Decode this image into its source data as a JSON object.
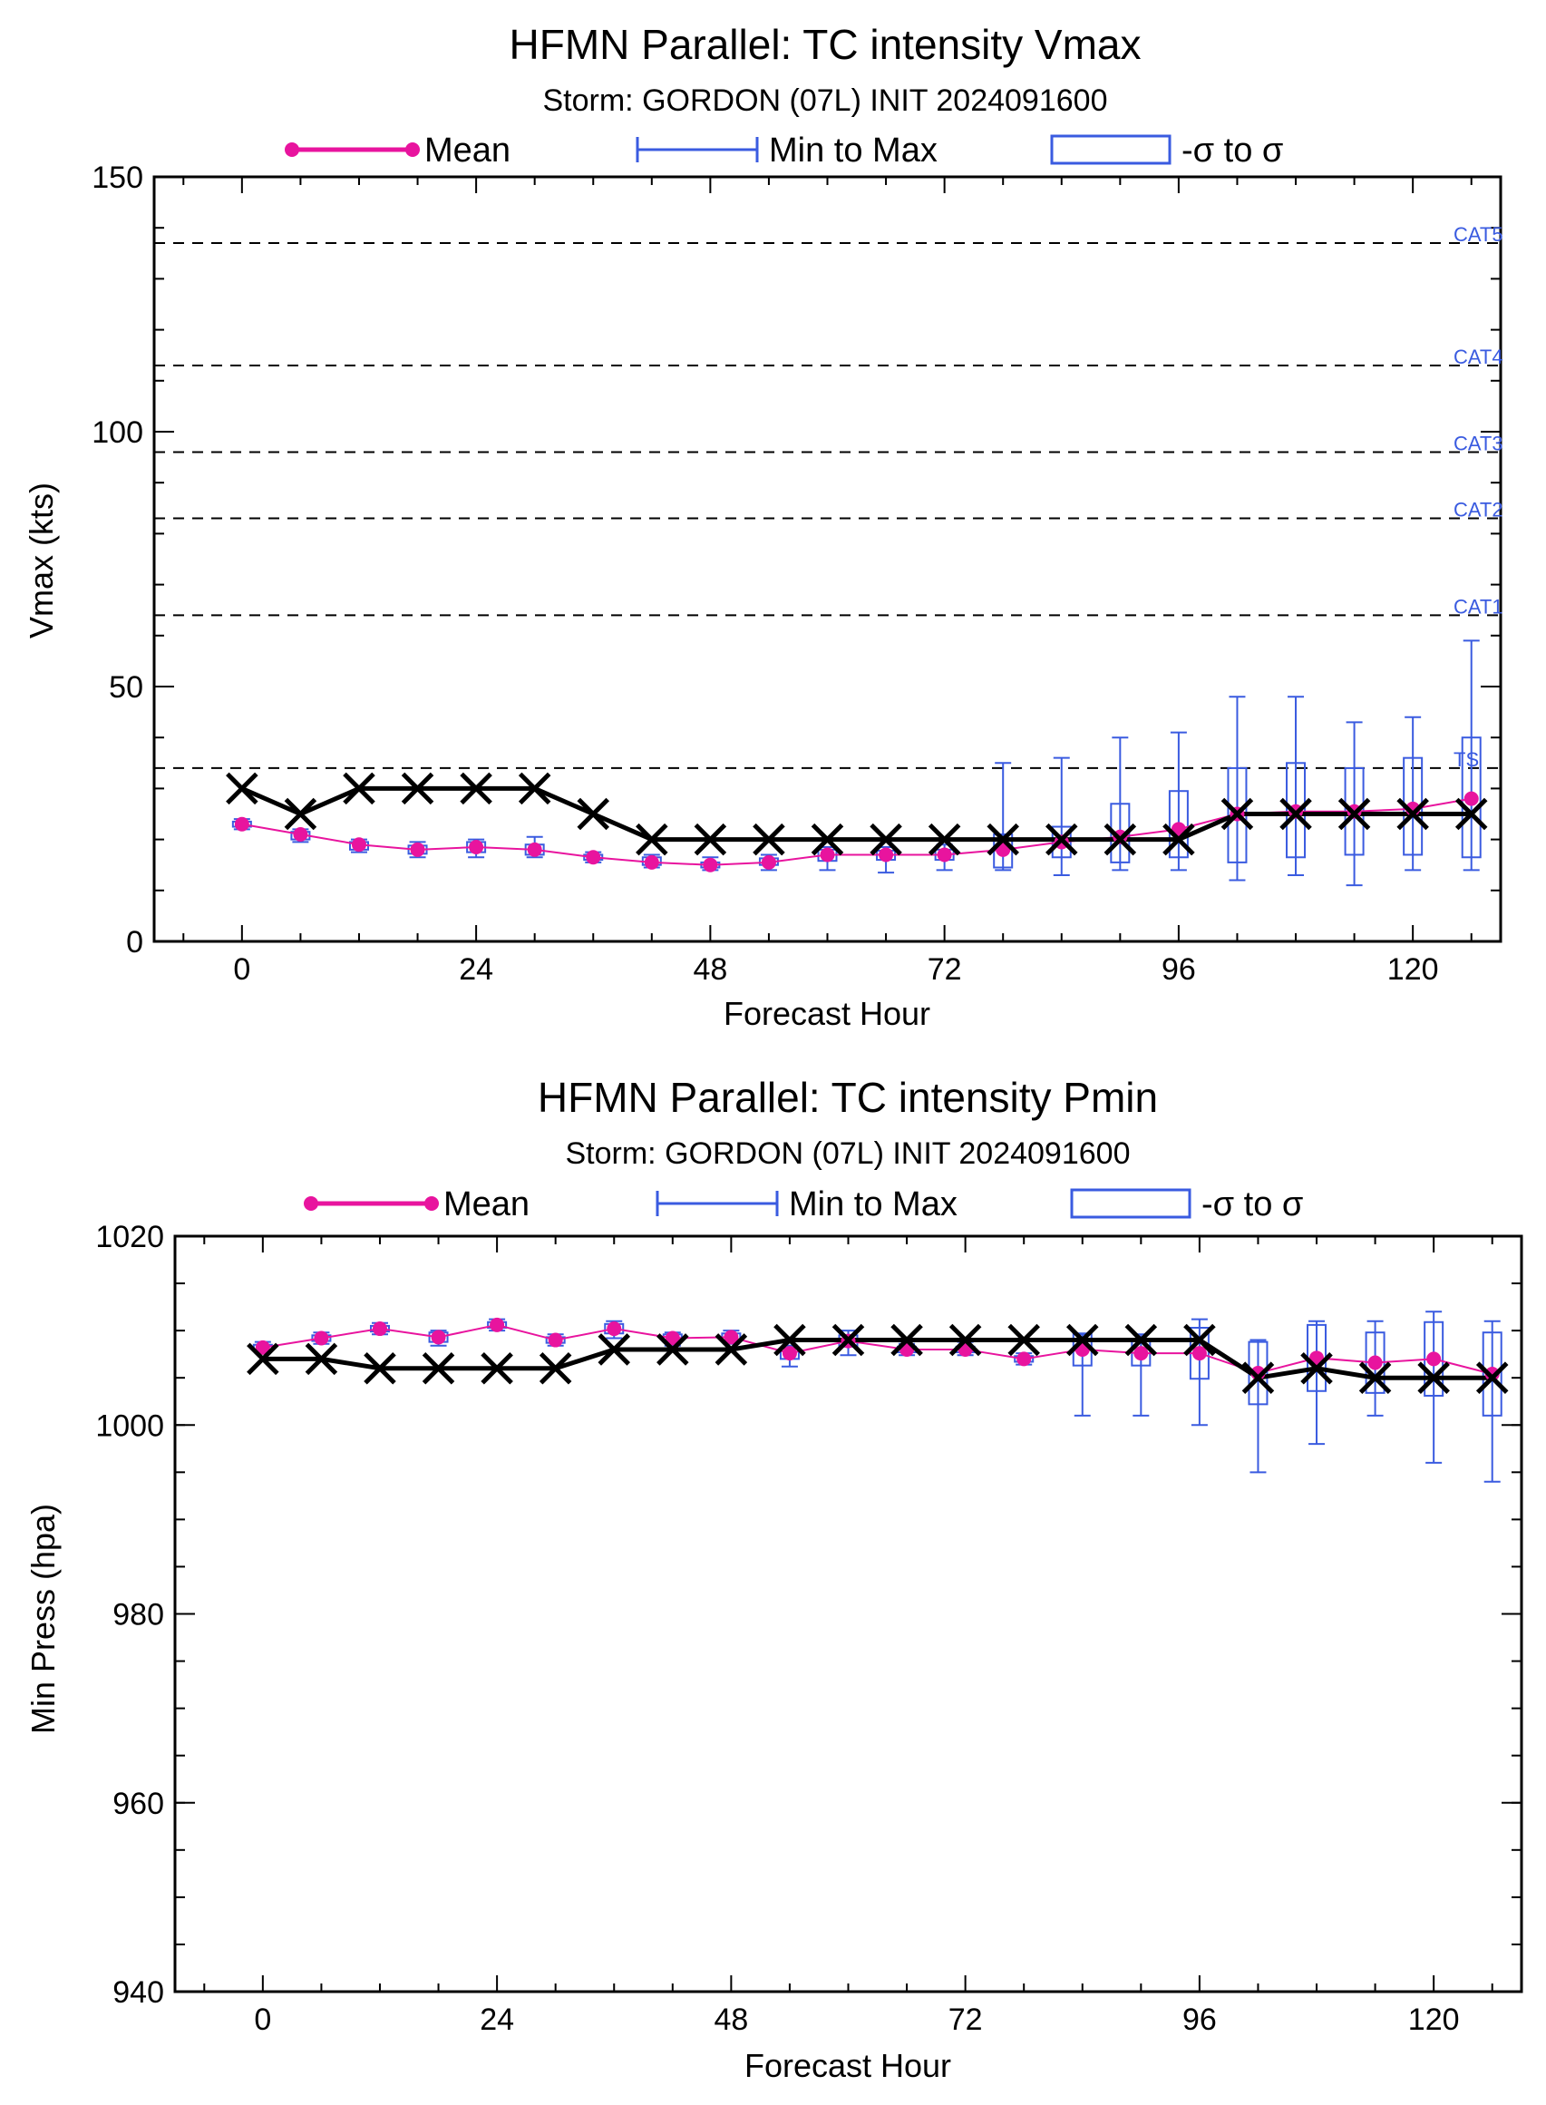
{
  "chart_data": [
    {
      "type": "line",
      "title": "HFMN Parallel: TC intensity Vmax",
      "subtitle": "Storm: GORDON (07L) INIT 2024091600",
      "xlabel": "Forecast Hour",
      "ylabel": "Vmax (kts)",
      "xlim": [
        -9,
        129
      ],
      "ylim": [
        0,
        150
      ],
      "xticks": [
        "0",
        "24",
        "48",
        "72",
        "96",
        "120"
      ],
      "yticks": [
        "0",
        "50",
        "100",
        "150"
      ],
      "legend": [
        "Mean",
        "Min to Max",
        "-σ to σ"
      ],
      "legend_placement": "top",
      "colors": {
        "mean": "#e8149e",
        "spread": "#3a5be0",
        "observed": "#000000"
      },
      "reference_lines": [
        {
          "label": "CAT5",
          "value": 137
        },
        {
          "label": "CAT4",
          "value": 113
        },
        {
          "label": "CAT3",
          "value": 96
        },
        {
          "label": "CAT2",
          "value": 83
        },
        {
          "label": "CAT1",
          "value": 64
        },
        {
          "label": "TS",
          "value": 34
        }
      ],
      "x": [
        0,
        6,
        12,
        18,
        24,
        30,
        36,
        42,
        48,
        54,
        60,
        66,
        72,
        78,
        84,
        90,
        96,
        102,
        108,
        114,
        120,
        126
      ],
      "series": [
        {
          "name": "Mean",
          "values": [
            23,
            21,
            19,
            18,
            18.5,
            18,
            16.5,
            15.5,
            15,
            15.5,
            17,
            17,
            17,
            18,
            19.5,
            20.5,
            22,
            25,
            25.5,
            25.5,
            26,
            28
          ]
        },
        {
          "name": "Min to Max",
          "min": [
            22,
            19.5,
            17.5,
            16.5,
            16.5,
            16.5,
            15.5,
            14.5,
            14,
            14,
            14,
            13.5,
            14,
            14,
            13,
            14,
            14,
            12,
            13,
            11,
            14,
            14
          ],
          "max": [
            24,
            22,
            20,
            19.5,
            20,
            20.5,
            17.5,
            17,
            16.5,
            17,
            18.5,
            18.5,
            19,
            35,
            36,
            40,
            41,
            48,
            48,
            43,
            44,
            59
          ]
        },
        {
          "name": "-σ to σ",
          "lower": [
            22.5,
            20,
            18,
            17.2,
            17.5,
            17,
            16,
            15,
            14.5,
            15,
            15.8,
            16,
            16,
            14.5,
            16.5,
            15.5,
            16.5,
            15.5,
            16.5,
            17,
            17,
            16.5
          ],
          "upper": [
            23.5,
            21.5,
            19.5,
            18.8,
            19.5,
            19,
            17,
            16.5,
            15.5,
            16.3,
            18,
            17.8,
            18,
            21,
            22.5,
            27,
            29.5,
            34,
            35,
            34,
            36,
            40
          ]
        },
        {
          "name": "Observed",
          "values": [
            30,
            25,
            30,
            30,
            30,
            30,
            25,
            20,
            20,
            20,
            20,
            20,
            20,
            20,
            20,
            20,
            20,
            25,
            25,
            25,
            25,
            25
          ]
        }
      ]
    },
    {
      "type": "line",
      "title": "HFMN Parallel: TC intensity Pmin",
      "subtitle": "Storm: GORDON (07L) INIT 2024091600",
      "xlabel": "Forecast Hour",
      "ylabel": "Min Press (hpa)",
      "xlim": [
        -9,
        129
      ],
      "ylim": [
        940,
        1020
      ],
      "xticks": [
        "0",
        "24",
        "48",
        "72",
        "96",
        "120"
      ],
      "yticks": [
        "940",
        "960",
        "980",
        "1000",
        "1020"
      ],
      "legend": [
        "Mean",
        "Min to Max",
        "-σ to σ"
      ],
      "legend_placement": "top",
      "colors": {
        "mean": "#e8149e",
        "spread": "#3a5be0",
        "observed": "#000000"
      },
      "x": [
        0,
        6,
        12,
        18,
        24,
        30,
        36,
        42,
        48,
        54,
        60,
        66,
        72,
        78,
        84,
        90,
        96,
        102,
        108,
        114,
        120,
        126
      ],
      "series": [
        {
          "name": "Mean",
          "values": [
            1008.2,
            1009.2,
            1010.2,
            1009.3,
            1010.6,
            1009,
            1010.2,
            1009.2,
            1009.3,
            1007.6,
            1008.9,
            1008,
            1008,
            1007,
            1008,
            1007.6,
            1007.6,
            1005.5,
            1007.1,
            1006.6,
            1007,
            1005.4
          ]
        },
        {
          "name": "Min to Max",
          "min": [
            1007.6,
            1008.6,
            1009.6,
            1008.4,
            1010,
            1008.4,
            1009.2,
            1008.4,
            1008.6,
            1006.2,
            1007.4,
            1007.4,
            1007.4,
            1006.4,
            1001,
            1001,
            1000,
            995,
            998,
            1001,
            996,
            994
          ],
          "max": [
            1008.8,
            1009.8,
            1010.8,
            1010,
            1011.2,
            1009.6,
            1011,
            1009.8,
            1010,
            1008.4,
            1010,
            1008.6,
            1008.8,
            1007.6,
            1009.6,
            1009.6,
            1011.2,
            1009,
            1011,
            1011,
            1012,
            1011
          ]
        },
        {
          "name": "-σ to σ",
          "lower": [
            1007.9,
            1008.9,
            1009.9,
            1008.8,
            1010.3,
            1008.7,
            1009.7,
            1008.8,
            1008.9,
            1007,
            1008.3,
            1007.7,
            1007.7,
            1006.7,
            1006.3,
            1006.3,
            1004.9,
            1002.2,
            1003.6,
            1003.4,
            1003.1,
            1001
          ]
        },
        {
          "name": "Observed",
          "values": [
            1007,
            1007,
            1006,
            1006,
            1006,
            1006,
            1008,
            1008,
            1008,
            1009,
            1009,
            1009,
            1009,
            1009,
            1009,
            1009,
            1009,
            1005,
            1006,
            1005,
            1005,
            1005
          ]
        }
      ]
    }
  ]
}
